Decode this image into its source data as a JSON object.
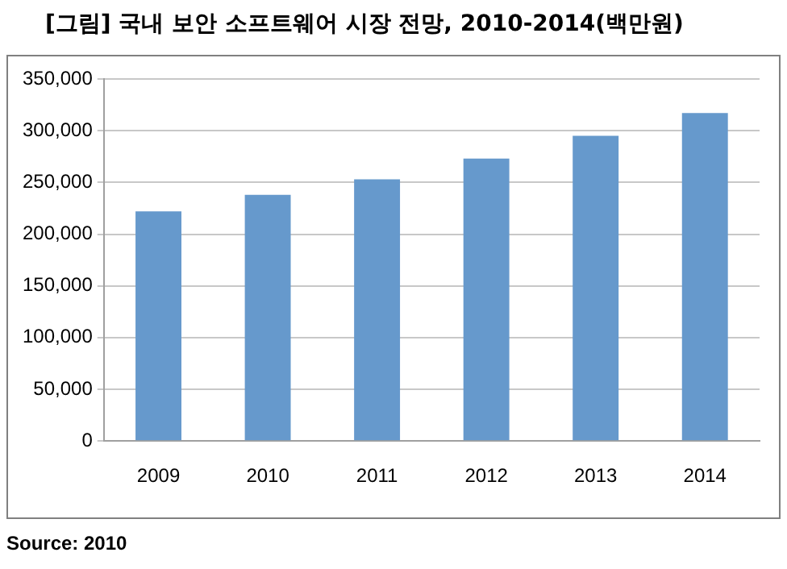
{
  "chart_data": {
    "type": "bar",
    "title": "[그림] 국내 보안 소프트웨어 시장 전망, 2010-2014(백만원)",
    "categories": [
      "2009",
      "2010",
      "2011",
      "2012",
      "2013",
      "2014"
    ],
    "values": [
      222000,
      238000,
      253000,
      273000,
      295000,
      317000
    ],
    "color": "#6699cc",
    "ylim": [
      0,
      350000
    ],
    "yticks": [
      0,
      {
        "value": 50000,
        "label": "50,000"
      },
      {
        "value": 100000,
        "label": "100,000"
      },
      {
        "value": 150000,
        "label": "150,000"
      },
      {
        "value": 200000,
        "label": "200,000"
      },
      {
        "value": 250000,
        "label": "250,000"
      },
      {
        "value": 300000,
        "label": "300,000"
      },
      {
        "value": 350000,
        "label": "350,000"
      }
    ],
    "grid": "y",
    "annotations": [
      "Source: 2010"
    ]
  }
}
